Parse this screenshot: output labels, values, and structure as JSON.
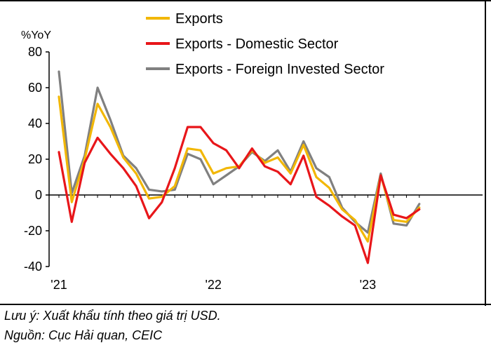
{
  "chart_data": {
    "type": "line",
    "ylabel": "%YoY",
    "ylim": [
      -40,
      80
    ],
    "yticks": [
      80,
      60,
      40,
      20,
      0,
      -20,
      -40
    ],
    "xlabels": [
      {
        "index": 0,
        "label": "'21"
      },
      {
        "index": 12,
        "label": "'22"
      },
      {
        "index": 24,
        "label": "'23"
      }
    ],
    "legend_position": "top-center",
    "series": [
      {
        "name": "Exports",
        "color": "#f2b705",
        "values": [
          55,
          -4,
          20,
          51,
          38,
          21,
          12,
          -2,
          -1,
          5,
          26,
          25,
          12,
          15,
          16,
          25,
          18,
          21,
          12,
          28,
          10,
          4,
          -8,
          -14,
          -26,
          11,
          -14,
          -15,
          -7
        ]
      },
      {
        "name": "Exports - Domestic Sector",
        "color": "#e8161a",
        "values": [
          24,
          -15,
          18,
          32,
          23,
          15,
          5,
          -13,
          -4,
          15,
          38,
          38,
          29,
          25,
          15,
          26,
          16,
          13,
          6,
          22,
          -1,
          -6,
          -12,
          -17,
          -38,
          11,
          -11,
          -13,
          -8
        ]
      },
      {
        "name": "Exports - Foreign Invested Sector",
        "color": "#808080",
        "values": [
          69,
          1,
          22,
          60,
          42,
          22,
          15,
          3,
          2,
          3,
          23,
          20,
          6,
          11,
          16,
          24,
          19,
          25,
          13,
          30,
          15,
          10,
          -7,
          -15,
          -21,
          12,
          -16,
          -17,
          -5
        ]
      }
    ]
  },
  "notes": {
    "line1": "Lưu ý: Xuất khẩu tính theo giá trị USD.",
    "line2": "Nguồn: Cục Hải quan, CEIC"
  }
}
